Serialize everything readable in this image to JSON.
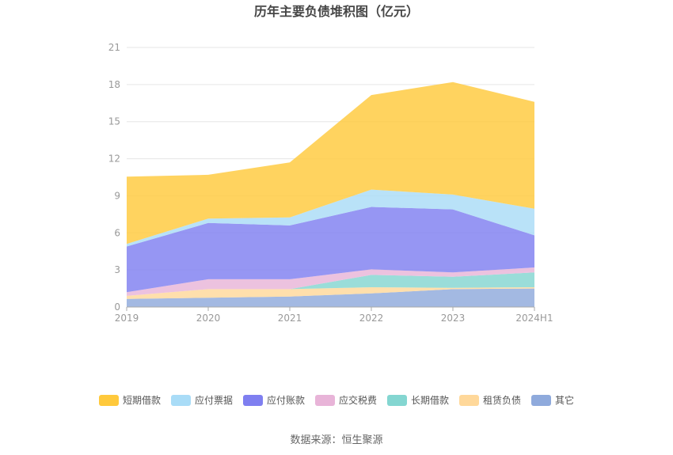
{
  "chart_data": {
    "type": "area",
    "stacked": true,
    "title": "历年主要负债堆积图（亿元）",
    "x": [
      "2019",
      "2020",
      "2021",
      "2022",
      "2023",
      "2024H1"
    ],
    "ylim": [
      0,
      21
    ],
    "yticks": [
      "0",
      "3",
      "6",
      "9",
      "12",
      "15",
      "18",
      "21"
    ],
    "grid": true,
    "legend_position": "bottom",
    "series": [
      {
        "name": "其它",
        "color": "#8faadc",
        "values": [
          0.65,
          0.75,
          0.85,
          1.1,
          1.45,
          1.5
        ]
      },
      {
        "name": "租赁负债",
        "color": "#ffd89a",
        "values": [
          0.25,
          0.7,
          0.6,
          0.5,
          0.1,
          0.1
        ]
      },
      {
        "name": "长期借款",
        "color": "#84d6d1",
        "values": [
          0.0,
          0.0,
          0.0,
          1.0,
          0.9,
          1.2
        ]
      },
      {
        "name": "应交税费",
        "color": "#e8b4d8",
        "values": [
          0.3,
          0.8,
          0.8,
          0.45,
          0.35,
          0.4
        ]
      },
      {
        "name": "应付账款",
        "color": "#7f7ff0",
        "values": [
          3.7,
          4.55,
          4.35,
          5.05,
          5.1,
          2.6
        ]
      },
      {
        "name": "应付票据",
        "color": "#a9dcf7",
        "values": [
          0.2,
          0.35,
          0.65,
          1.4,
          1.2,
          2.15
        ]
      },
      {
        "name": "短期借款",
        "color": "#ffc93c",
        "values": [
          5.45,
          3.55,
          4.45,
          7.65,
          9.1,
          8.65
        ]
      }
    ],
    "legend_order": [
      "短期借款",
      "应付票据",
      "应付账款",
      "应交税费",
      "长期借款",
      "租赁负债",
      "其它"
    ]
  },
  "source": "数据来源：恒生聚源"
}
